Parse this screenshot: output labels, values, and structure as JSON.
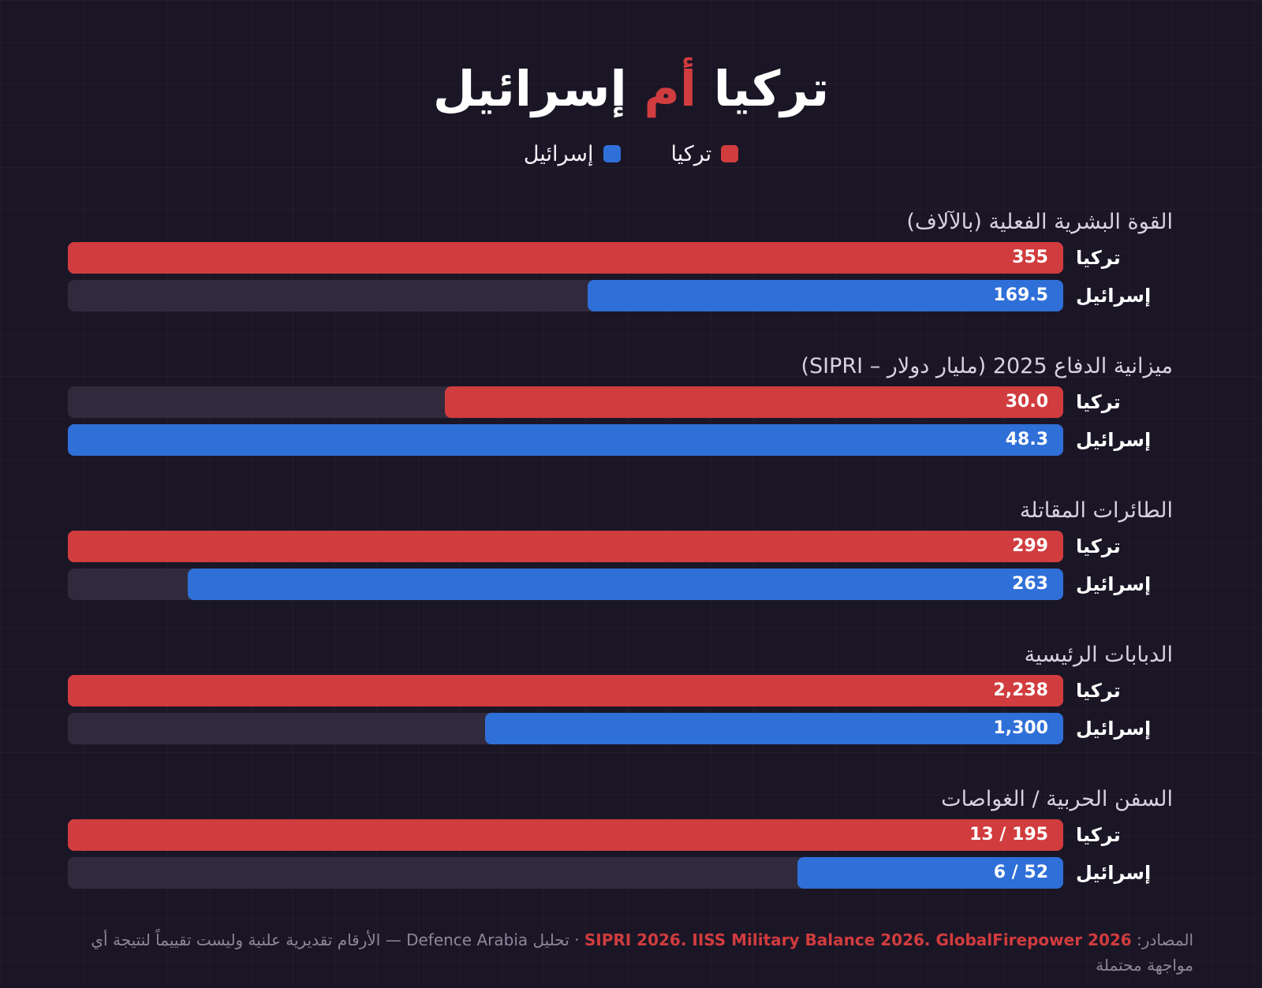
{
  "title": {
    "part1": "تركيا",
    "part2": "أم",
    "part3": "إسرائيل"
  },
  "legend": [
    {
      "label": "تركيا",
      "color": "#d13c3e"
    },
    {
      "label": "إسرائيل",
      "color": "#2f6fd8"
    }
  ],
  "colors": {
    "turkey": "#d13c3e",
    "israel": "#2f6fd8",
    "track": "#302a3c",
    "background": "#1b1626"
  },
  "chart_data": {
    "type": "bar",
    "orientation": "horizontal",
    "title": "تركيا أم إسرائيل",
    "legend_position": "top-center",
    "series_names": [
      "تركيا",
      "إسرائيل"
    ],
    "groups": [
      {
        "category": "القوة البشرية الفعلية (بالآلاف)",
        "bars": [
          {
            "series": "تركيا",
            "value": 355,
            "label": "355"
          },
          {
            "series": "إسرائيل",
            "value": 169.5,
            "label": "169.5"
          }
        ]
      },
      {
        "category": "ميزانية الدفاع 2025 (مليار دولار – SIPRI)",
        "bars": [
          {
            "series": "تركيا",
            "value": 30.0,
            "label": "30.0"
          },
          {
            "series": "إسرائيل",
            "value": 48.3,
            "label": "48.3"
          }
        ]
      },
      {
        "category": "الطائرات المقاتلة",
        "bars": [
          {
            "series": "تركيا",
            "value": 299,
            "label": "299"
          },
          {
            "series": "إسرائيل",
            "value": 263,
            "label": "263"
          }
        ]
      },
      {
        "category": "الدبابات الرئيسية",
        "bars": [
          {
            "series": "تركيا",
            "value": 2238,
            "label": "2,238"
          },
          {
            "series": "إسرائيل",
            "value": 1300,
            "label": "1,300"
          }
        ]
      },
      {
        "category": "السفن الحربية / الغواصات",
        "bars": [
          {
            "series": "تركيا",
            "value": 195,
            "label": "13 / 195"
          },
          {
            "series": "إسرائيل",
            "value": 52,
            "label": "6 / 52"
          }
        ]
      }
    ]
  },
  "footer": {
    "prefix": "المصادر:",
    "sources": "SIPRI 2026. IISS Military Balance 2026. GlobalFirepower 2026",
    "note": "· تحليل Defence Arabia — الأرقام تقديرية علنية وليست تقييماً لنتيجة أي مواجهة محتملة"
  }
}
